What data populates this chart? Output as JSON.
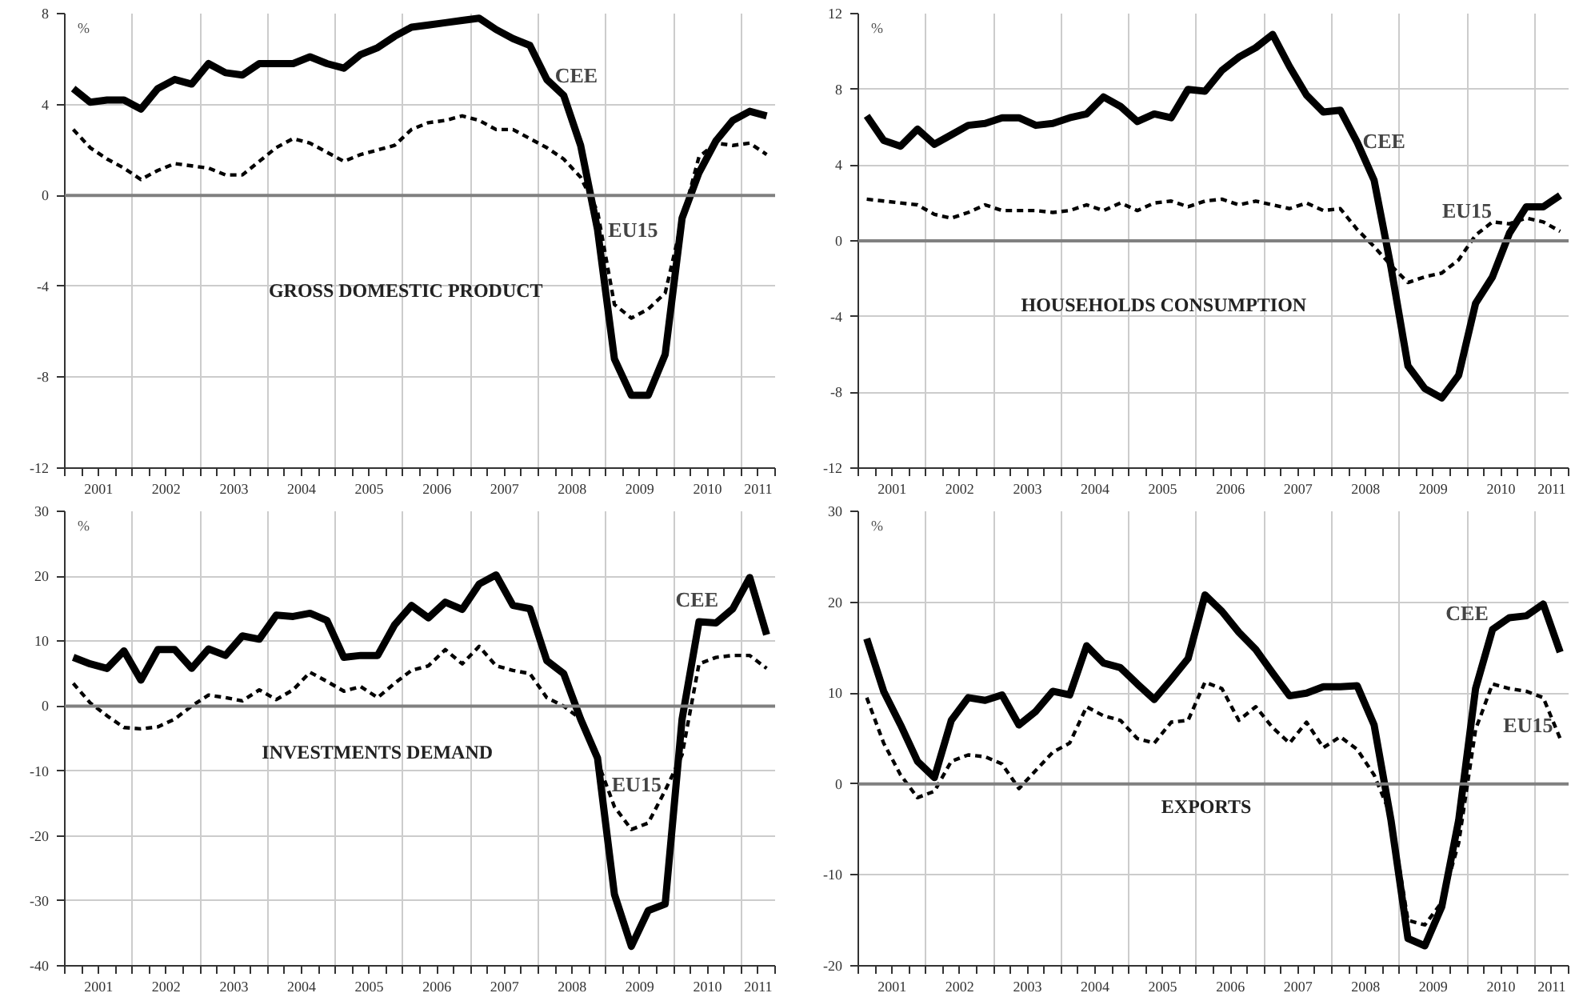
{
  "chart_data": [
    {
      "type": "line",
      "title": "GROSS DOMESTIC PRODUCT",
      "ylabel": "%",
      "grid": true,
      "legend": false,
      "marker": "none",
      "x": [
        2001.125,
        2001.375,
        2001.625,
        2001.875,
        2002.125,
        2002.375,
        2002.625,
        2002.875,
        2003.125,
        2003.375,
        2003.625,
        2003.875,
        2004.125,
        2004.375,
        2004.625,
        2004.875,
        2005.125,
        2005.375,
        2005.625,
        2005.875,
        2006.125,
        2006.375,
        2006.625,
        2006.875,
        2007.125,
        2007.375,
        2007.625,
        2007.875,
        2008.125,
        2008.375,
        2008.625,
        2008.875,
        2009.125,
        2009.375,
        2009.625,
        2009.875,
        2010.125,
        2010.375,
        2010.625,
        2010.875,
        2011.125,
        2011.375
      ],
      "xlim": [
        2001,
        2011.5
      ],
      "xticks": [
        {
          "value": 2001,
          "label": null
        },
        {
          "value": 2001.25,
          "label": null
        },
        {
          "value": 2001.5,
          "label": "2001"
        },
        {
          "value": 2001.75,
          "label": null
        },
        {
          "value": 2002,
          "label": null
        },
        {
          "value": 2002.25,
          "label": null
        },
        {
          "value": 2002.5,
          "label": "2002"
        },
        {
          "value": 2002.75,
          "label": null
        },
        {
          "value": 2003,
          "label": null
        },
        {
          "value": 2003.25,
          "label": null
        },
        {
          "value": 2003.5,
          "label": "2003"
        },
        {
          "value": 2003.75,
          "label": null
        },
        {
          "value": 2004,
          "label": null
        },
        {
          "value": 2004.25,
          "label": null
        },
        {
          "value": 2004.5,
          "label": "2004"
        },
        {
          "value": 2004.75,
          "label": null
        },
        {
          "value": 2005,
          "label": null
        },
        {
          "value": 2005.25,
          "label": null
        },
        {
          "value": 2005.5,
          "label": "2005"
        },
        {
          "value": 2005.75,
          "label": null
        },
        {
          "value": 2006,
          "label": null
        },
        {
          "value": 2006.25,
          "label": null
        },
        {
          "value": 2006.5,
          "label": "2006"
        },
        {
          "value": 2006.75,
          "label": null
        },
        {
          "value": 2007,
          "label": null
        },
        {
          "value": 2007.25,
          "label": null
        },
        {
          "value": 2007.5,
          "label": "2007"
        },
        {
          "value": 2007.75,
          "label": null
        },
        {
          "value": 2008,
          "label": null
        },
        {
          "value": 2008.25,
          "label": null
        },
        {
          "value": 2008.5,
          "label": "2008"
        },
        {
          "value": 2008.75,
          "label": null
        },
        {
          "value": 2009,
          "label": null
        },
        {
          "value": 2009.25,
          "label": null
        },
        {
          "value": 2009.5,
          "label": "2009"
        },
        {
          "value": 2009.75,
          "label": null
        },
        {
          "value": 2010,
          "label": null
        },
        {
          "value": 2010.25,
          "label": null
        },
        {
          "value": 2010.5,
          "label": "2010"
        },
        {
          "value": 2010.75,
          "label": null
        },
        {
          "value": 2011,
          "label": null
        },
        {
          "value": 2011.25,
          "label": "2011"
        },
        {
          "value": 2011.5,
          "label": null
        }
      ],
      "ylim": [
        -12,
        8
      ],
      "yticks": [
        -12,
        -8,
        -4,
        0,
        4,
        8
      ],
      "ref_lines": [
        {
          "axis": "y",
          "value": 0,
          "color": "#808080"
        }
      ],
      "series": [
        {
          "name": "CEE",
          "color": "#000000",
          "line_style": "solid",
          "values": [
            4.7,
            4.1,
            4.2,
            4.2,
            3.8,
            4.7,
            5.1,
            4.9,
            5.8,
            5.4,
            5.3,
            5.8,
            5.8,
            5.8,
            6.1,
            5.8,
            5.6,
            6.2,
            6.5,
            7.0,
            7.4,
            7.5,
            7.6,
            7.7,
            7.8,
            7.3,
            6.9,
            6.6,
            5.1,
            4.4,
            2.2,
            -1.5,
            -7.2,
            -8.8,
            -8.8,
            -7.0,
            -1.0,
            1.0,
            2.4,
            3.3,
            3.7,
            3.5
          ]
        },
        {
          "name": "EU15",
          "color": "#000000",
          "line_style": "dashed",
          "values": [
            2.9,
            2.1,
            1.6,
            1.2,
            0.7,
            1.1,
            1.4,
            1.3,
            1.2,
            0.9,
            0.9,
            1.5,
            2.1,
            2.5,
            2.3,
            1.9,
            1.5,
            1.8,
            2.0,
            2.2,
            2.9,
            3.2,
            3.3,
            3.5,
            3.3,
            2.9,
            2.9,
            2.5,
            2.1,
            1.6,
            0.8,
            -0.7,
            -4.8,
            -5.4,
            -5.0,
            -4.3,
            -1.1,
            1.7,
            2.3,
            2.2,
            2.3,
            1.8
          ]
        }
      ]
    },
    {
      "type": "line",
      "title": "HOUSEHOLDS CONSUMPTION",
      "ylabel": "%",
      "grid": true,
      "legend": false,
      "marker": "none",
      "x": [
        2001.125,
        2001.375,
        2001.625,
        2001.875,
        2002.125,
        2002.375,
        2002.625,
        2002.875,
        2003.125,
        2003.375,
        2003.625,
        2003.875,
        2004.125,
        2004.375,
        2004.625,
        2004.875,
        2005.125,
        2005.375,
        2005.625,
        2005.875,
        2006.125,
        2006.375,
        2006.625,
        2006.875,
        2007.125,
        2007.375,
        2007.625,
        2007.875,
        2008.125,
        2008.375,
        2008.625,
        2008.875,
        2009.125,
        2009.375,
        2009.625,
        2009.875,
        2010.125,
        2010.375,
        2010.625,
        2010.875,
        2011.125,
        2011.375
      ],
      "xlim": [
        2001,
        2011.5
      ],
      "xticks": [
        {
          "value": 2001,
          "label": null
        },
        {
          "value": 2001.25,
          "label": null
        },
        {
          "value": 2001.5,
          "label": "2001"
        },
        {
          "value": 2001.75,
          "label": null
        },
        {
          "value": 2002,
          "label": null
        },
        {
          "value": 2002.25,
          "label": null
        },
        {
          "value": 2002.5,
          "label": "2002"
        },
        {
          "value": 2002.75,
          "label": null
        },
        {
          "value": 2003,
          "label": null
        },
        {
          "value": 2003.25,
          "label": null
        },
        {
          "value": 2003.5,
          "label": "2003"
        },
        {
          "value": 2003.75,
          "label": null
        },
        {
          "value": 2004,
          "label": null
        },
        {
          "value": 2004.25,
          "label": null
        },
        {
          "value": 2004.5,
          "label": "2004"
        },
        {
          "value": 2004.75,
          "label": null
        },
        {
          "value": 2005,
          "label": null
        },
        {
          "value": 2005.25,
          "label": null
        },
        {
          "value": 2005.5,
          "label": "2005"
        },
        {
          "value": 2005.75,
          "label": null
        },
        {
          "value": 2006,
          "label": null
        },
        {
          "value": 2006.25,
          "label": null
        },
        {
          "value": 2006.5,
          "label": "2006"
        },
        {
          "value": 2006.75,
          "label": null
        },
        {
          "value": 2007,
          "label": null
        },
        {
          "value": 2007.25,
          "label": null
        },
        {
          "value": 2007.5,
          "label": "2007"
        },
        {
          "value": 2007.75,
          "label": null
        },
        {
          "value": 2008,
          "label": null
        },
        {
          "value": 2008.25,
          "label": null
        },
        {
          "value": 2008.5,
          "label": "2008"
        },
        {
          "value": 2008.75,
          "label": null
        },
        {
          "value": 2009,
          "label": null
        },
        {
          "value": 2009.25,
          "label": null
        },
        {
          "value": 2009.5,
          "label": "2009"
        },
        {
          "value": 2009.75,
          "label": null
        },
        {
          "value": 2010,
          "label": null
        },
        {
          "value": 2010.25,
          "label": null
        },
        {
          "value": 2010.5,
          "label": "2010"
        },
        {
          "value": 2010.75,
          "label": null
        },
        {
          "value": 2011,
          "label": null
        },
        {
          "value": 2011.25,
          "label": "2011"
        },
        {
          "value": 2011.5,
          "label": null
        }
      ],
      "ylim": [
        -12,
        12
      ],
      "yticks": [
        -12,
        -8,
        -4,
        0,
        4,
        8,
        12
      ],
      "ref_lines": [
        {
          "axis": "y",
          "value": 0,
          "color": "#808080"
        }
      ],
      "series": [
        {
          "name": "CEE",
          "color": "#000000",
          "line_style": "solid",
          "values": [
            6.6,
            5.3,
            5.0,
            5.9,
            5.1,
            5.6,
            6.1,
            6.2,
            6.5,
            6.5,
            6.1,
            6.2,
            6.5,
            6.7,
            7.6,
            7.1,
            6.3,
            6.7,
            6.5,
            8.0,
            7.9,
            9.0,
            9.7,
            10.2,
            10.9,
            9.2,
            7.7,
            6.8,
            6.9,
            5.2,
            3.2,
            -1.4,
            -6.6,
            -7.8,
            -8.3,
            -7.1,
            -3.3,
            -1.9,
            0.4,
            1.8,
            1.8,
            2.4
          ]
        },
        {
          "name": "EU15",
          "color": "#000000",
          "line_style": "dashed",
          "values": [
            2.2,
            2.1,
            2.0,
            1.9,
            1.4,
            1.2,
            1.5,
            1.9,
            1.6,
            1.6,
            1.6,
            1.5,
            1.6,
            1.9,
            1.6,
            2.0,
            1.6,
            2.0,
            2.1,
            1.8,
            2.1,
            2.2,
            1.9,
            2.1,
            1.9,
            1.7,
            2.0,
            1.6,
            1.7,
            0.6,
            -0.3,
            -1.3,
            -2.2,
            -1.9,
            -1.7,
            -1.0,
            0.3,
            1.0,
            0.9,
            1.2,
            1.0,
            0.5
          ]
        }
      ]
    },
    {
      "type": "line",
      "title": "INVESTMENTS DEMAND",
      "ylabel": "%",
      "grid": true,
      "legend": false,
      "marker": "none",
      "x": [
        2001.125,
        2001.375,
        2001.625,
        2001.875,
        2002.125,
        2002.375,
        2002.625,
        2002.875,
        2003.125,
        2003.375,
        2003.625,
        2003.875,
        2004.125,
        2004.375,
        2004.625,
        2004.875,
        2005.125,
        2005.375,
        2005.625,
        2005.875,
        2006.125,
        2006.375,
        2006.625,
        2006.875,
        2007.125,
        2007.375,
        2007.625,
        2007.875,
        2008.125,
        2008.375,
        2008.625,
        2008.875,
        2009.125,
        2009.375,
        2009.625,
        2009.875,
        2010.125,
        2010.375,
        2010.625,
        2010.875,
        2011.125,
        2011.375
      ],
      "xlim": [
        2001,
        2011.5
      ],
      "xticks": [
        {
          "value": 2001,
          "label": null
        },
        {
          "value": 2001.25,
          "label": null
        },
        {
          "value": 2001.5,
          "label": "2001"
        },
        {
          "value": 2001.75,
          "label": null
        },
        {
          "value": 2002,
          "label": null
        },
        {
          "value": 2002.25,
          "label": null
        },
        {
          "value": 2002.5,
          "label": "2002"
        },
        {
          "value": 2002.75,
          "label": null
        },
        {
          "value": 2003,
          "label": null
        },
        {
          "value": 2003.25,
          "label": null
        },
        {
          "value": 2003.5,
          "label": "2003"
        },
        {
          "value": 2003.75,
          "label": null
        },
        {
          "value": 2004,
          "label": null
        },
        {
          "value": 2004.25,
          "label": null
        },
        {
          "value": 2004.5,
          "label": "2004"
        },
        {
          "value": 2004.75,
          "label": null
        },
        {
          "value": 2005,
          "label": null
        },
        {
          "value": 2005.25,
          "label": null
        },
        {
          "value": 2005.5,
          "label": "2005"
        },
        {
          "value": 2005.75,
          "label": null
        },
        {
          "value": 2006,
          "label": null
        },
        {
          "value": 2006.25,
          "label": null
        },
        {
          "value": 2006.5,
          "label": "2006"
        },
        {
          "value": 2006.75,
          "label": null
        },
        {
          "value": 2007,
          "label": null
        },
        {
          "value": 2007.25,
          "label": null
        },
        {
          "value": 2007.5,
          "label": "2007"
        },
        {
          "value": 2007.75,
          "label": null
        },
        {
          "value": 2008,
          "label": null
        },
        {
          "value": 2008.25,
          "label": null
        },
        {
          "value": 2008.5,
          "label": "2008"
        },
        {
          "value": 2008.75,
          "label": null
        },
        {
          "value": 2009,
          "label": null
        },
        {
          "value": 2009.25,
          "label": null
        },
        {
          "value": 2009.5,
          "label": "2009"
        },
        {
          "value": 2009.75,
          "label": null
        },
        {
          "value": 2010,
          "label": null
        },
        {
          "value": 2010.25,
          "label": null
        },
        {
          "value": 2010.5,
          "label": "2010"
        },
        {
          "value": 2010.75,
          "label": null
        },
        {
          "value": 2011,
          "label": null
        },
        {
          "value": 2011.25,
          "label": "2011"
        },
        {
          "value": 2011.5,
          "label": null
        }
      ],
      "ylim": [
        -40,
        30
      ],
      "yticks": [
        -40,
        -30,
        -20,
        -10,
        0,
        10,
        20,
        30
      ],
      "ref_lines": [
        {
          "axis": "y",
          "value": 0,
          "color": "#808080"
        }
      ],
      "series": [
        {
          "name": "CEE",
          "color": "#000000",
          "line_style": "solid",
          "values": [
            7.5,
            6.5,
            5.8,
            8.5,
            4.0,
            8.7,
            8.7,
            5.8,
            8.8,
            7.8,
            10.8,
            10.3,
            14.0,
            13.8,
            14.3,
            13.2,
            7.5,
            7.8,
            7.8,
            12.5,
            15.5,
            13.6,
            16.0,
            14.9,
            18.8,
            20.2,
            15.5,
            15.0,
            7.0,
            5.0,
            -2.0,
            -8.0,
            -29.0,
            -37.0,
            -31.5,
            -30.5,
            -2.0,
            13.0,
            12.8,
            15.0,
            19.8,
            11.0
          ]
        },
        {
          "name": "EU15",
          "color": "#000000",
          "line_style": "dashed",
          "values": [
            3.5,
            0.5,
            -1.5,
            -3.3,
            -3.5,
            -3.2,
            -2.0,
            0.0,
            1.7,
            1.3,
            0.8,
            2.5,
            1.0,
            2.5,
            5.2,
            3.8,
            2.3,
            3.0,
            1.3,
            3.5,
            5.5,
            6.2,
            8.7,
            6.5,
            9.2,
            6.2,
            5.5,
            5.0,
            1.3,
            0.0,
            -2.0,
            -8.5,
            -15.5,
            -19.0,
            -18.0,
            -13.0,
            -7.5,
            6.5,
            7.5,
            7.8,
            7.8,
            5.8
          ]
        }
      ]
    },
    {
      "type": "line",
      "title": "EXPORTS",
      "ylabel": "%",
      "grid": true,
      "legend": false,
      "marker": "none",
      "x": [
        2001.125,
        2001.375,
        2001.625,
        2001.875,
        2002.125,
        2002.375,
        2002.625,
        2002.875,
        2003.125,
        2003.375,
        2003.625,
        2003.875,
        2004.125,
        2004.375,
        2004.625,
        2004.875,
        2005.125,
        2005.375,
        2005.625,
        2005.875,
        2006.125,
        2006.375,
        2006.625,
        2006.875,
        2007.125,
        2007.375,
        2007.625,
        2007.875,
        2008.125,
        2008.375,
        2008.625,
        2008.875,
        2009.125,
        2009.375,
        2009.625,
        2009.875,
        2010.125,
        2010.375,
        2010.625,
        2010.875,
        2011.125,
        2011.375
      ],
      "xlim": [
        2001,
        2011.5
      ],
      "xticks": [
        {
          "value": 2001,
          "label": null
        },
        {
          "value": 2001.25,
          "label": null
        },
        {
          "value": 2001.5,
          "label": "2001"
        },
        {
          "value": 2001.75,
          "label": null
        },
        {
          "value": 2002,
          "label": null
        },
        {
          "value": 2002.25,
          "label": null
        },
        {
          "value": 2002.5,
          "label": "2002"
        },
        {
          "value": 2002.75,
          "label": null
        },
        {
          "value": 2003,
          "label": null
        },
        {
          "value": 2003.25,
          "label": null
        },
        {
          "value": 2003.5,
          "label": "2003"
        },
        {
          "value": 2003.75,
          "label": null
        },
        {
          "value": 2004,
          "label": null
        },
        {
          "value": 2004.25,
          "label": null
        },
        {
          "value": 2004.5,
          "label": "2004"
        },
        {
          "value": 2004.75,
          "label": null
        },
        {
          "value": 2005,
          "label": null
        },
        {
          "value": 2005.25,
          "label": null
        },
        {
          "value": 2005.5,
          "label": "2005"
        },
        {
          "value": 2005.75,
          "label": null
        },
        {
          "value": 2006,
          "label": null
        },
        {
          "value": 2006.25,
          "label": null
        },
        {
          "value": 2006.5,
          "label": "2006"
        },
        {
          "value": 2006.75,
          "label": null
        },
        {
          "value": 2007,
          "label": null
        },
        {
          "value": 2007.25,
          "label": null
        },
        {
          "value": 2007.5,
          "label": "2007"
        },
        {
          "value": 2007.75,
          "label": null
        },
        {
          "value": 2008,
          "label": null
        },
        {
          "value": 2008.25,
          "label": null
        },
        {
          "value": 2008.5,
          "label": "2008"
        },
        {
          "value": 2008.75,
          "label": null
        },
        {
          "value": 2009,
          "label": null
        },
        {
          "value": 2009.25,
          "label": null
        },
        {
          "value": 2009.5,
          "label": "2009"
        },
        {
          "value": 2009.75,
          "label": null
        },
        {
          "value": 2010,
          "label": null
        },
        {
          "value": 2010.25,
          "label": null
        },
        {
          "value": 2010.5,
          "label": "2010"
        },
        {
          "value": 2010.75,
          "label": null
        },
        {
          "value": 2011,
          "label": null
        },
        {
          "value": 2011.25,
          "label": "2011"
        },
        {
          "value": 2011.5,
          "label": null
        }
      ],
      "ylim": [
        -20,
        30
      ],
      "yticks": [
        -20,
        -10,
        0,
        10,
        20,
        30
      ],
      "ref_lines": [
        {
          "axis": "y",
          "value": 0,
          "color": "#808080"
        }
      ],
      "series": [
        {
          "name": "CEE",
          "color": "#000000",
          "line_style": "solid",
          "values": [
            16.0,
            10.2,
            6.5,
            2.5,
            0.7,
            7.0,
            9.5,
            9.2,
            9.8,
            6.5,
            8.0,
            10.2,
            9.8,
            15.2,
            13.3,
            12.8,
            11.0,
            9.3,
            11.5,
            13.8,
            20.8,
            19.0,
            16.7,
            14.8,
            12.2,
            9.7,
            10.0,
            10.7,
            10.7,
            10.8,
            6.5,
            -4.0,
            -17.0,
            -17.8,
            -13.5,
            -4.0,
            10.5,
            17.0,
            18.3,
            18.5,
            19.8,
            14.5
          ]
        },
        {
          "name": "EU15",
          "color": "#000000",
          "line_style": "dashed",
          "values": [
            9.5,
            4.5,
            1.0,
            -1.5,
            -0.8,
            2.5,
            3.2,
            3.0,
            2.2,
            -0.5,
            1.5,
            3.5,
            4.5,
            8.5,
            7.5,
            7.0,
            5.0,
            4.5,
            6.8,
            7.0,
            11.2,
            10.5,
            7.0,
            8.5,
            6.2,
            4.5,
            6.8,
            4.0,
            5.2,
            3.8,
            1.0,
            -3.5,
            -15.0,
            -15.5,
            -13.0,
            -6.5,
            6.0,
            11.0,
            10.5,
            10.2,
            9.5,
            5.0
          ]
        }
      ]
    }
  ]
}
